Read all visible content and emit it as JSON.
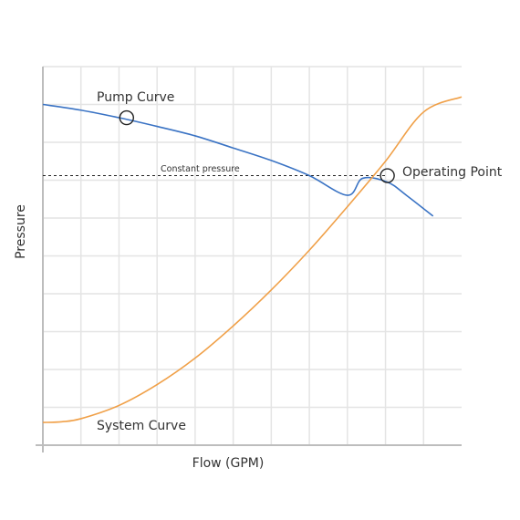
{
  "chart_data": {
    "type": "line",
    "title": "",
    "xlabel": "Flow (GPM)",
    "ylabel": "Pressure",
    "xlim": [
      0,
      11
    ],
    "ylim": [
      0,
      10
    ],
    "grid": true,
    "series": [
      {
        "name": "Pump Curve",
        "color": "#3a73c4",
        "x": [
          0,
          1,
          2,
          3,
          4,
          5,
          6,
          7,
          8,
          9,
          10,
          10.25
        ],
        "y": [
          9.0,
          8.85,
          8.65,
          8.42,
          8.17,
          7.85,
          7.52,
          7.12,
          6.6,
          5.95,
          5.0,
          6.05
        ]
      },
      {
        "name": "System Curve",
        "color": "#f0a048",
        "x": [
          0,
          0.5,
          1,
          2,
          3,
          4,
          5,
          6,
          7,
          8,
          9,
          10,
          11.0
        ],
        "y": [
          0.6,
          0.62,
          0.7,
          1.05,
          1.6,
          2.3,
          3.15,
          4.1,
          5.15,
          6.3,
          7.5,
          8.8,
          9.2
        ]
      }
    ],
    "constant_pressure": {
      "label": "Constant pressure",
      "y": 7.12,
      "x_start": 0,
      "x_end": 9.05
    },
    "markers": [
      {
        "name": "pump-curve-marker",
        "x": 2.2,
        "y": 8.65
      },
      {
        "name": "operating-point-marker",
        "x": 9.05,
        "y": 7.12
      }
    ],
    "annotations": {
      "pump_curve": "Pump Curve",
      "system_curve": "System Curve",
      "operating_point": "Operating Point"
    }
  },
  "colors": {
    "pump": "#3a73c4",
    "system": "#f0a048",
    "grid": "#e4e4e4",
    "axis": "#bdbdbd",
    "text": "#333333",
    "dash": "#222222"
  }
}
